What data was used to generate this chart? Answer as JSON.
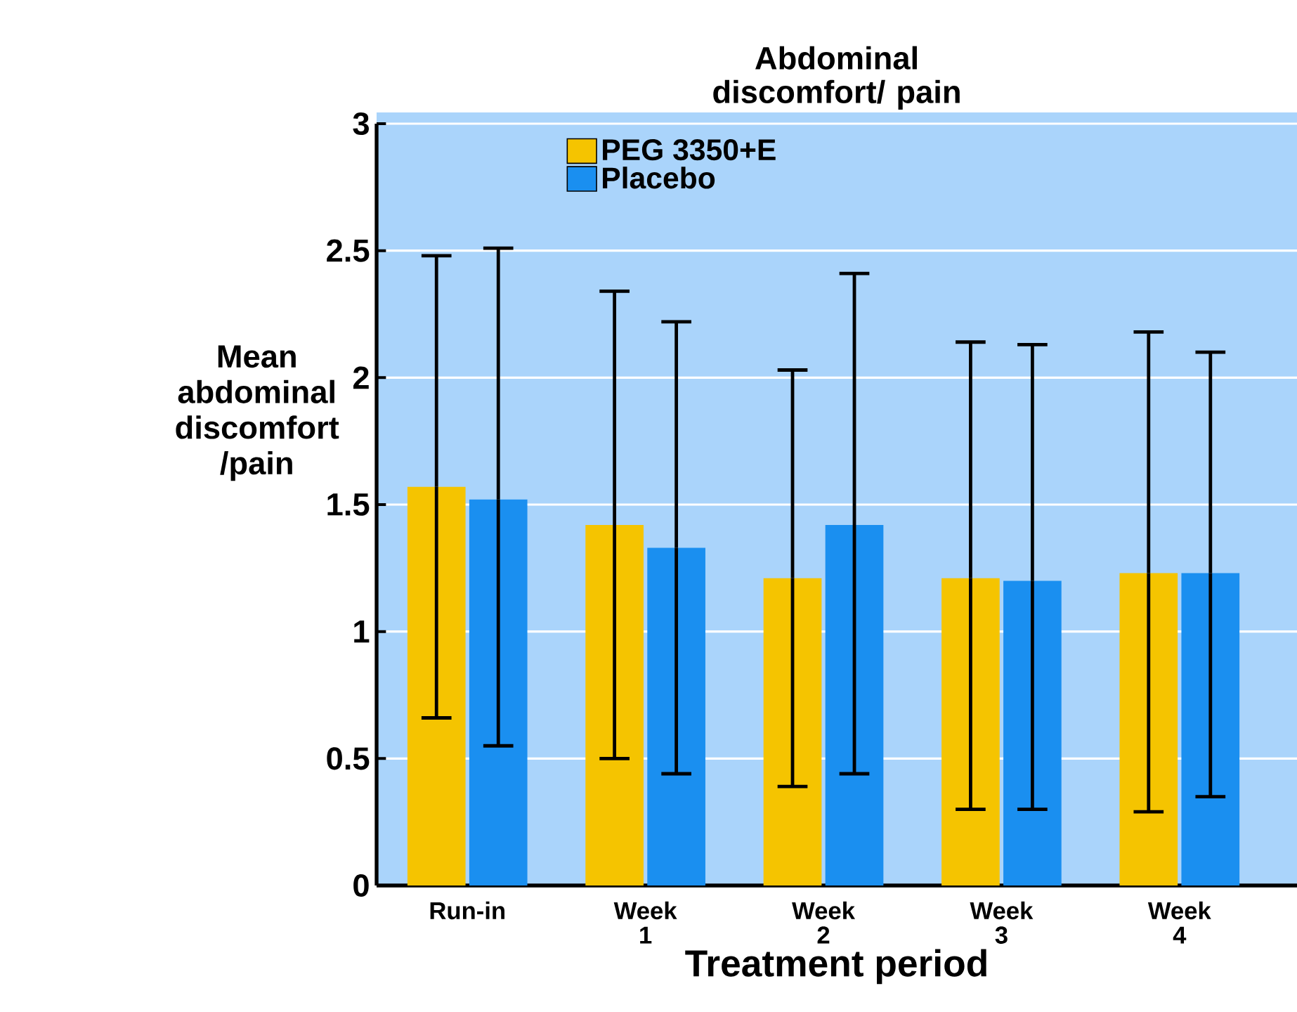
{
  "chart_data": {
    "type": "bar",
    "title": "Abdominal discomfort/ pain",
    "xlabel": "Treatment period",
    "ylabel": "Mean abdominal discomfort /pain",
    "categories": [
      "Run-in",
      "Week 1",
      "Week 2",
      "Week 3",
      "Week 4"
    ],
    "series": [
      {
        "name": "PEG 3350+E",
        "color": "#f5c400",
        "values": [
          1.57,
          1.42,
          1.21,
          1.21,
          1.23
        ],
        "errors": [
          [
            0.66,
            2.48
          ],
          [
            0.5,
            2.34
          ],
          [
            0.39,
            2.03
          ],
          [
            0.3,
            2.14
          ],
          [
            0.29,
            2.18
          ]
        ]
      },
      {
        "name": "Placebo",
        "color": "#1a8ff0",
        "values": [
          1.52,
          1.33,
          1.42,
          1.2,
          1.23
        ],
        "errors": [
          [
            0.55,
            2.51
          ],
          [
            0.44,
            2.22
          ],
          [
            0.44,
            2.41
          ],
          [
            0.3,
            2.13
          ],
          [
            0.35,
            2.1
          ]
        ]
      }
    ],
    "ylim": [
      0,
      3
    ],
    "yticks": [
      0,
      0.5,
      1,
      1.5,
      2,
      2.5,
      3
    ],
    "grid": "y",
    "legend": "top left"
  }
}
